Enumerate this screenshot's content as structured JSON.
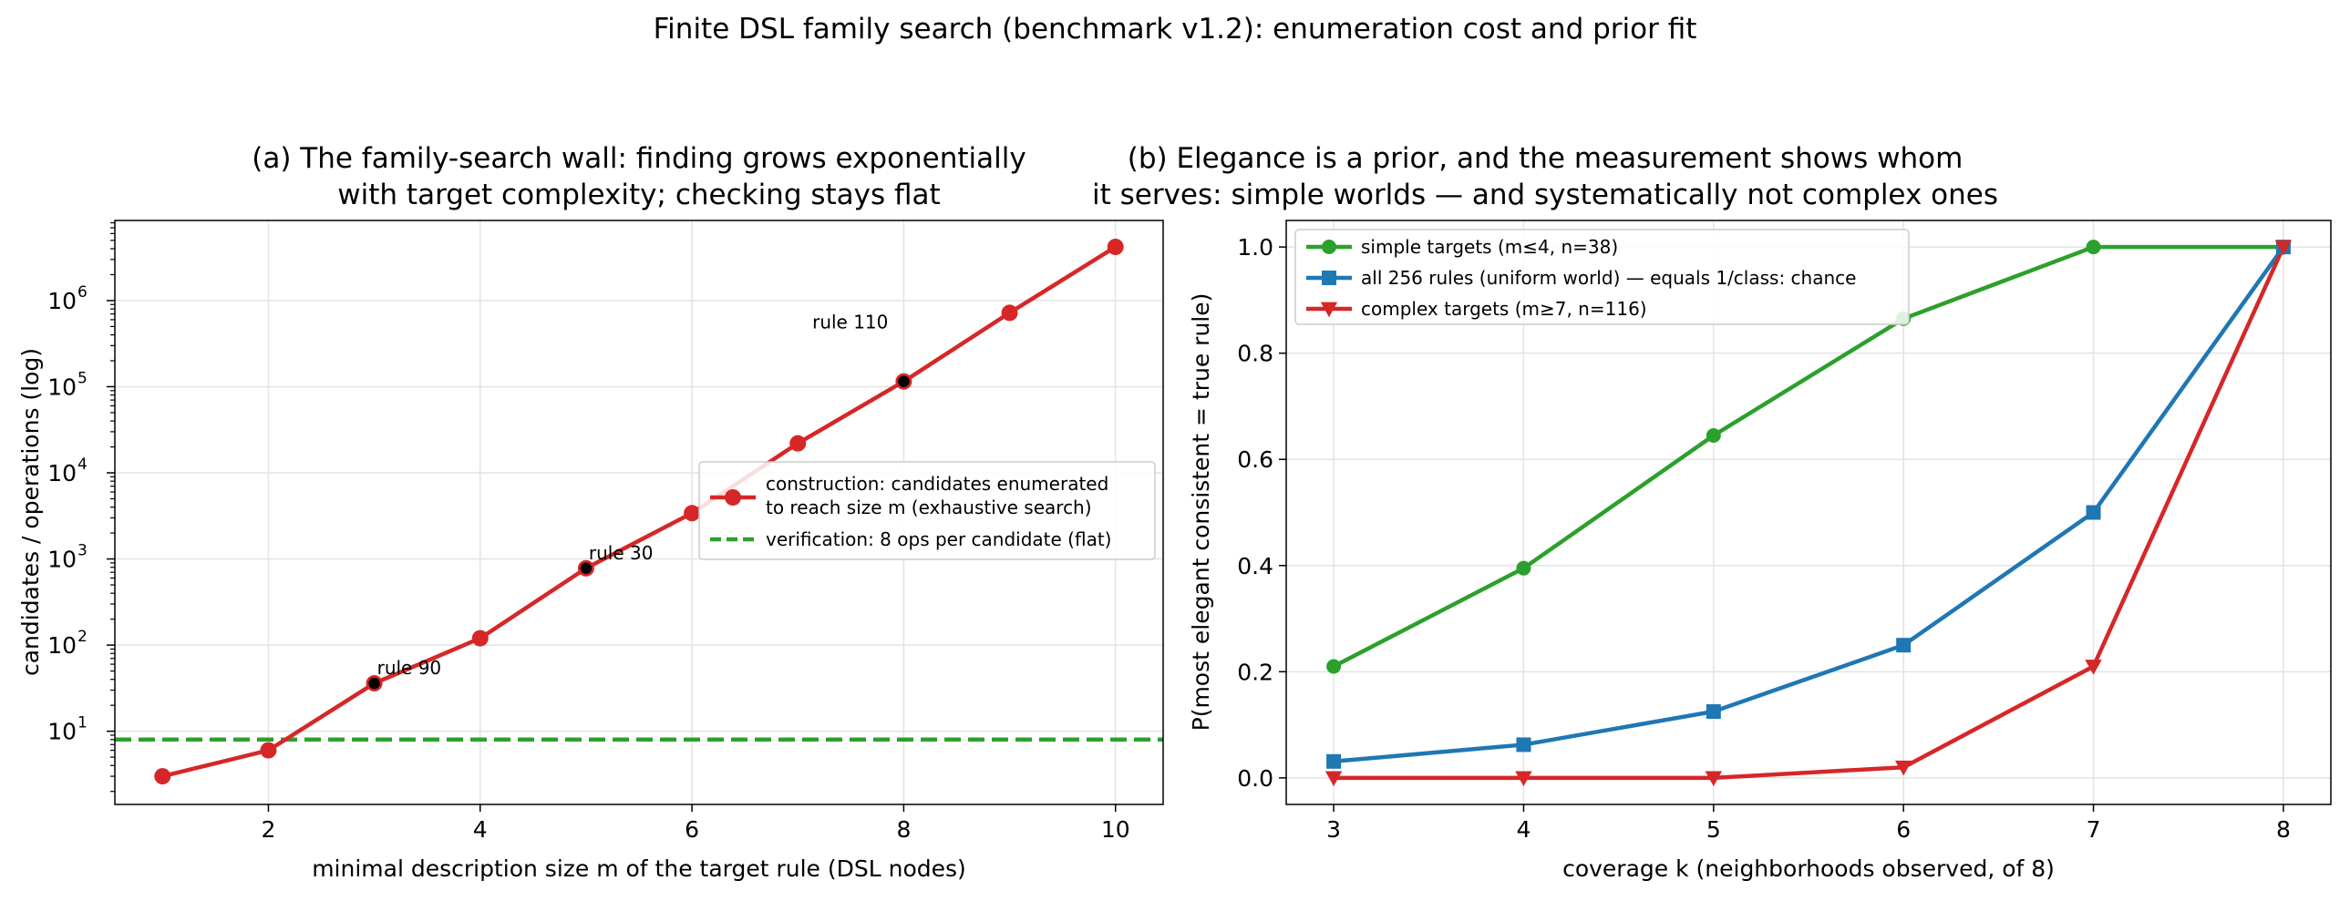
{
  "figure_title": "Finite DSL family search (benchmark v1.2): enumeration cost and prior fit",
  "chart_data": [
    {
      "type": "line",
      "panel": "a",
      "title_lines": [
        "(a) The family-search wall: finding grows exponentially",
        "with target complexity; checking stays flat"
      ],
      "xlabel": "minimal description size m of the target rule (DSL nodes)",
      "ylabel": "candidates / operations (log)",
      "yscale": "log",
      "xlim": [
        0.55,
        10.45
      ],
      "ylim_log10": [
        0.15,
        6.93
      ],
      "xticks": [
        2,
        4,
        6,
        8,
        10
      ],
      "yticks": [
        {
          "value": 10,
          "base": "10",
          "exp": "1"
        },
        {
          "value": 100,
          "base": "10",
          "exp": "2"
        },
        {
          "value": 1000,
          "base": "10",
          "exp": "3"
        },
        {
          "value": 10000,
          "base": "10",
          "exp": "4"
        },
        {
          "value": 100000,
          "base": "10",
          "exp": "5"
        },
        {
          "value": 1000000,
          "base": "10",
          "exp": "6"
        }
      ],
      "grid": true,
      "legend_position": "center-right",
      "series": [
        {
          "name": "construction: candidates enumerated to reach size m (exhaustive search)",
          "legend_lines": [
            "construction: candidates enumerated",
            "to reach size m (exhaustive search)"
          ],
          "color": "#d62728",
          "marker": "circle",
          "x": [
            1,
            2,
            3,
            4,
            5,
            6,
            7,
            8,
            9,
            10
          ],
          "y": [
            3,
            6,
            36,
            120,
            780,
            3400,
            22000,
            115000,
            720000,
            4200000
          ]
        },
        {
          "name": "verification: 8 ops per candidate (flat)",
          "legend_lines": [
            "verification: 8 ops per candidate (flat)"
          ],
          "color": "#2ca02c",
          "style": "dashed",
          "constant": 8
        }
      ],
      "highlights": [
        {
          "label": "rule 90",
          "x": 3,
          "y": 36
        },
        {
          "label": "rule 30",
          "x": 5,
          "y": 780
        },
        {
          "label": "rule 110",
          "x": 8,
          "y": 115000
        }
      ]
    },
    {
      "type": "line",
      "panel": "b",
      "title_lines": [
        "(b) Elegance is a prior, and the measurement shows whom",
        "it serves: simple worlds — and systematically not complex ones"
      ],
      "xlabel": "coverage k (neighborhoods observed, of 8)",
      "ylabel": "P(most elegant consistent = true rule)",
      "xlim": [
        2.75,
        8.25
      ],
      "ylim": [
        -0.05,
        1.05
      ],
      "xticks": [
        3,
        4,
        5,
        6,
        7,
        8
      ],
      "yticks": [
        "0.0",
        "0.2",
        "0.4",
        "0.6",
        "0.8",
        "1.0"
      ],
      "grid": true,
      "legend_position": "top-left",
      "series": [
        {
          "name": "simple targets (m≤4, n=38)",
          "color": "#2ca02c",
          "marker": "circle",
          "x": [
            3,
            4,
            5,
            6,
            7,
            8
          ],
          "y": [
            0.21,
            0.395,
            0.645,
            0.865,
            1.0,
            1.0
          ]
        },
        {
          "name": "all 256 rules (uniform world) — equals 1/class: chance",
          "color": "#1f77b4",
          "marker": "square",
          "x": [
            3,
            4,
            5,
            6,
            7,
            8
          ],
          "y": [
            0.031,
            0.0625,
            0.125,
            0.25,
            0.5,
            1.0
          ]
        },
        {
          "name": "complex targets (m≥7, n=116)",
          "color": "#d62728",
          "marker": "triangle-down",
          "x": [
            3,
            4,
            5,
            6,
            7,
            8
          ],
          "y": [
            0.0,
            0.0,
            0.0,
            0.02,
            0.21,
            1.0
          ]
        }
      ]
    }
  ]
}
